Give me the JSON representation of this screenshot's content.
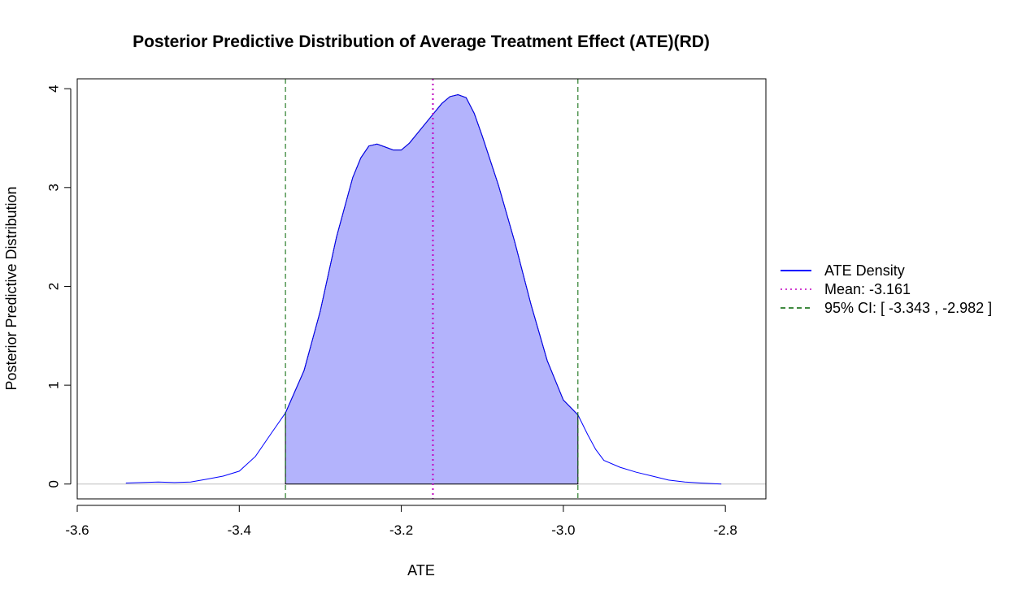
{
  "chart_data": {
    "type": "area",
    "title": "Posterior Predictive Distribution of Average Treatment Effect (ATE)(RD)",
    "xlabel": "ATE",
    "ylabel": "Posterior Predictive Distribution",
    "xlim": [
      -3.6,
      -2.75
    ],
    "ylim": [
      -0.15,
      4.1
    ],
    "x_ticks": [
      -3.6,
      -3.4,
      -3.2,
      -3.0,
      -2.8
    ],
    "x_tick_labels": [
      "-3.6",
      "-3.4",
      "-3.2",
      "-3.0",
      "-2.8"
    ],
    "y_ticks": [
      0,
      1,
      2,
      3,
      4
    ],
    "y_tick_labels": [
      "0",
      "1",
      "2",
      "3",
      "4"
    ],
    "grid": false,
    "legend_position": "right",
    "series": [
      {
        "name": "ATE Density",
        "style": "solid",
        "color": "#0000ff",
        "x": [
          -3.54,
          -3.52,
          -3.5,
          -3.48,
          -3.46,
          -3.44,
          -3.42,
          -3.4,
          -3.38,
          -3.36,
          -3.343,
          -3.32,
          -3.3,
          -3.28,
          -3.26,
          -3.25,
          -3.24,
          -3.23,
          -3.22,
          -3.21,
          -3.2,
          -3.19,
          -3.18,
          -3.17,
          -3.16,
          -3.15,
          -3.14,
          -3.13,
          -3.12,
          -3.11,
          -3.1,
          -3.08,
          -3.06,
          -3.04,
          -3.02,
          -3.0,
          -2.982,
          -2.97,
          -2.96,
          -2.95,
          -2.93,
          -2.91,
          -2.89,
          -2.87,
          -2.85,
          -2.83,
          -2.805
        ],
        "values": [
          0.01,
          0.015,
          0.02,
          0.015,
          0.02,
          0.05,
          0.08,
          0.13,
          0.28,
          0.52,
          0.72,
          1.15,
          1.75,
          2.5,
          3.1,
          3.3,
          3.42,
          3.44,
          3.41,
          3.38,
          3.38,
          3.45,
          3.55,
          3.65,
          3.75,
          3.85,
          3.92,
          3.94,
          3.91,
          3.75,
          3.52,
          3.02,
          2.45,
          1.82,
          1.25,
          0.85,
          0.7,
          0.5,
          0.35,
          0.24,
          0.17,
          0.12,
          0.08,
          0.04,
          0.02,
          0.01,
          0.0
        ]
      }
    ],
    "shaded_interval": [
      -3.343,
      -2.982
    ],
    "shade_color": "#b3b3fc",
    "mean": -3.161,
    "ci": [
      -3.343,
      -2.982
    ],
    "mean_color": "#c000c0",
    "ci_color": "#006400",
    "zero_line_color": "#bebebe",
    "legend": [
      {
        "label": "ATE Density",
        "style": "solid",
        "color": "#0000ff"
      },
      {
        "label": "Mean: -3.161",
        "style": "dotted",
        "color": "#c000c0"
      },
      {
        "label": "95% CI: [ -3.343 , -2.982 ]",
        "style": "dashed",
        "color": "#006400"
      }
    ]
  }
}
